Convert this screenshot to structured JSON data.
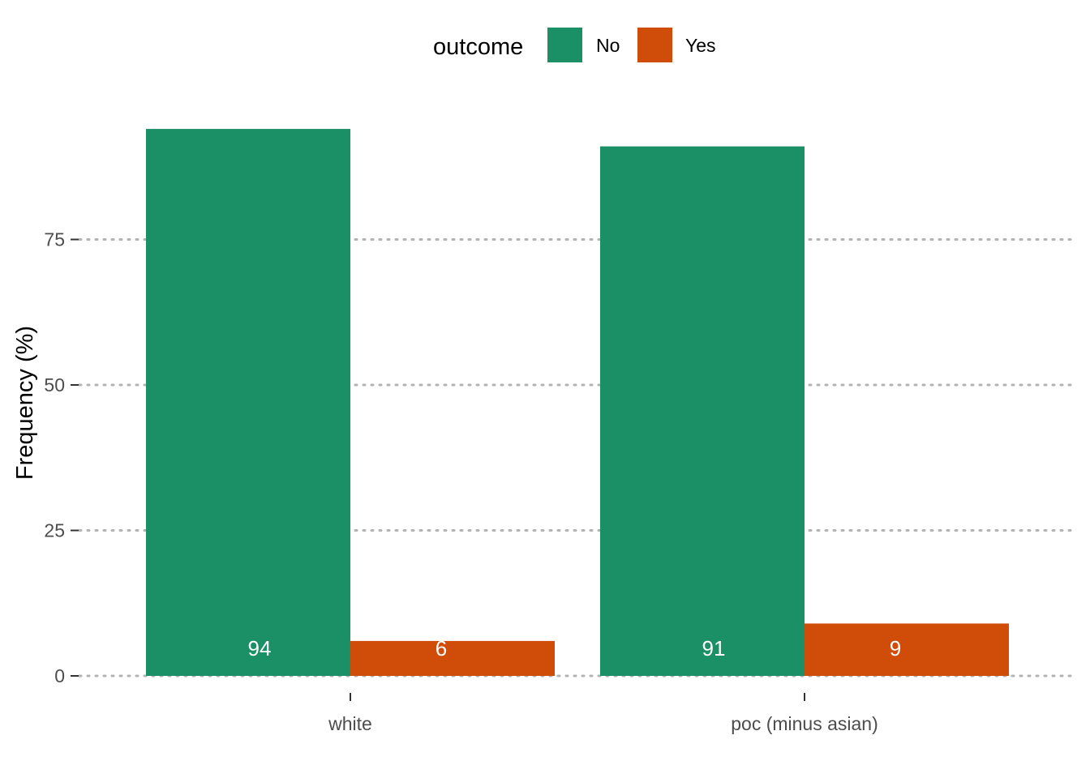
{
  "chart_data": {
    "type": "bar",
    "categories": [
      "white",
      "poc (minus asian)"
    ],
    "series": [
      {
        "name": "No",
        "values": [
          94,
          91
        ],
        "color": "#1B9066"
      },
      {
        "name": "Yes",
        "values": [
          6,
          9
        ],
        "color": "#D04C09"
      }
    ],
    "data_labels": [
      [
        "94",
        "91"
      ],
      [
        "6",
        "9"
      ]
    ],
    "xlabel": "",
    "ylabel": "Frequency (%)",
    "ylim": [
      0,
      94
    ],
    "yticks": [
      0,
      25,
      50,
      75
    ],
    "ytick_labels": [
      "0",
      "25",
      "50",
      "75"
    ],
    "grid": "horizontal-dotted",
    "legend": {
      "title": "outcome",
      "position": "top",
      "entries": [
        "No",
        "Yes"
      ]
    }
  }
}
